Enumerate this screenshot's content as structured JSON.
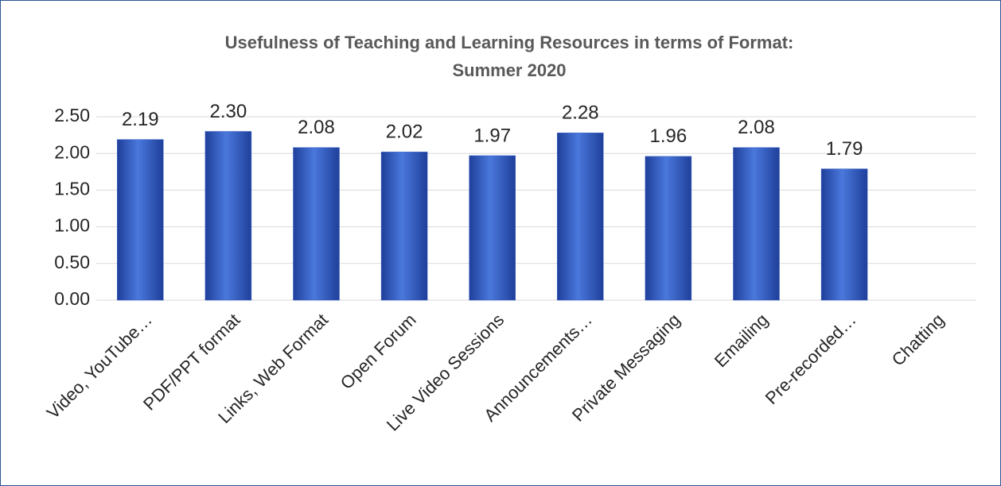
{
  "chart_data": {
    "type": "bar",
    "title": [
      "Usefulness of Teaching and Learning Resources in terms of Format:",
      "Summer 2020"
    ],
    "categories": [
      "Video, YouTube…",
      "PDF/PPT format",
      "Links, Web Format",
      "Open Forum",
      "Live Video Sessions",
      "Announcements…",
      "Private Messaging",
      "Emailing",
      "Pre-recorded…",
      "Chatting"
    ],
    "values": [
      2.19,
      2.3,
      2.08,
      2.02,
      1.97,
      2.28,
      1.96,
      2.08,
      1.79,
      null
    ],
    "value_labels": [
      "2.19",
      "2.30",
      "2.08",
      "2.02",
      "1.97",
      "2.28",
      "1.96",
      "2.08",
      "1.79",
      null
    ],
    "color": "#3a63c8",
    "ylim": [
      0,
      2.5
    ],
    "yticks": [
      {
        "value": 0,
        "label": "0.00"
      },
      {
        "value": 0.5,
        "label": "0.50"
      },
      {
        "value": 1,
        "label": "1.00"
      },
      {
        "value": 1.5,
        "label": "1.50"
      },
      {
        "value": 2,
        "label": "2.00"
      },
      {
        "value": 2.5,
        "label": "2.50"
      }
    ],
    "grid": true
  }
}
